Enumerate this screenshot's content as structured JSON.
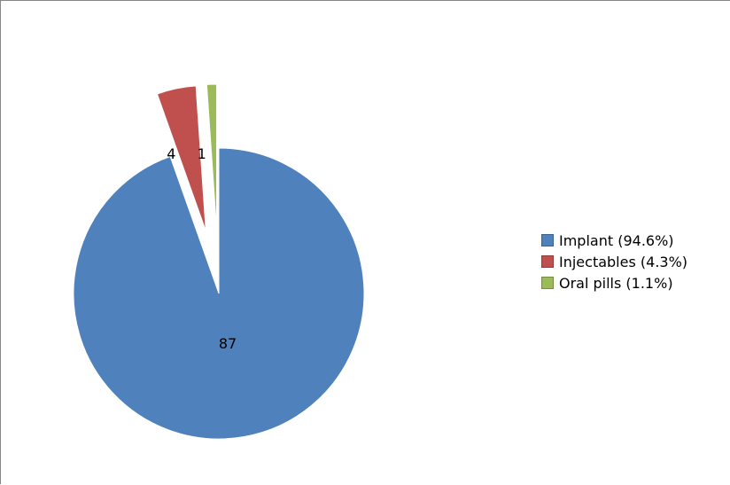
{
  "chart_data": {
    "type": "pie",
    "title": "",
    "categories": [
      "Implant (94.6%)",
      "Injectables (4.3%)",
      "Oral pills (1.1%)"
    ],
    "values": [
      87,
      4,
      1
    ],
    "data_labels": [
      "87",
      "4",
      "1"
    ],
    "colors": [
      "#4F81BD",
      "#C0504D",
      "#9BBB59"
    ],
    "exploded": [
      false,
      true,
      true
    ],
    "legend_position": "right"
  }
}
